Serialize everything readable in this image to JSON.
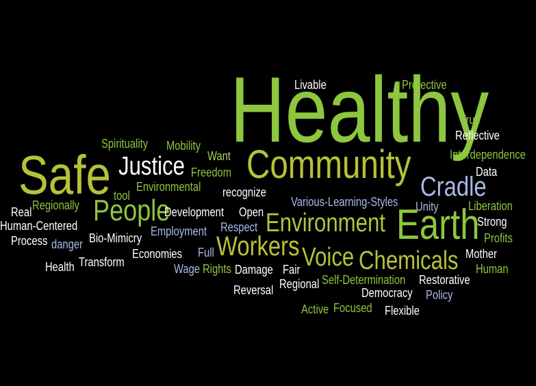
{
  "colors": {
    "background": "#000000",
    "bright_green": "#8dc63f",
    "olive_green": "#b5c23a",
    "light_green": "#9fd35a",
    "white": "#ffffff",
    "light_blue": "#a9b9e6"
  },
  "words": [
    {
      "text": "Healthy",
      "color": "bright_green"
    },
    {
      "text": "Safe",
      "color": "olive_green"
    },
    {
      "text": "Community",
      "color": "olive_green"
    },
    {
      "text": "Earth",
      "color": "bright_green"
    },
    {
      "text": "Justice",
      "color": "white"
    },
    {
      "text": "Cradle",
      "color": "light_blue"
    },
    {
      "text": "People",
      "color": "bright_green"
    },
    {
      "text": "Environment",
      "color": "olive_green"
    },
    {
      "text": "Workers",
      "color": "olive_green"
    },
    {
      "text": "Voice",
      "color": "olive_green"
    },
    {
      "text": "Chemicals",
      "color": "olive_green"
    },
    {
      "text": "Livable",
      "color": "white"
    },
    {
      "text": "Protective",
      "color": "bright_green"
    },
    {
      "text": "True",
      "color": "bright_green"
    },
    {
      "text": "Reflective",
      "color": "white"
    },
    {
      "text": "Interdependence",
      "color": "bright_green"
    },
    {
      "text": "Data",
      "color": "white"
    },
    {
      "text": "Spirituality",
      "color": "bright_green"
    },
    {
      "text": "Mobility",
      "color": "bright_green"
    },
    {
      "text": "Want",
      "color": "light_green"
    },
    {
      "text": "Freedom",
      "color": "bright_green"
    },
    {
      "text": "tool",
      "color": "bright_green"
    },
    {
      "text": "Environmental",
      "color": "bright_green"
    },
    {
      "text": "recognize",
      "color": "white"
    },
    {
      "text": "Various-Learning-Styles",
      "color": "light_blue"
    },
    {
      "text": "Liberation",
      "color": "bright_green"
    },
    {
      "text": "Unity",
      "color": "light_blue"
    },
    {
      "text": "Real",
      "color": "white"
    },
    {
      "text": "Regionally",
      "color": "bright_green"
    },
    {
      "text": "Human-Centered",
      "color": "white"
    },
    {
      "text": "Process",
      "color": "white"
    },
    {
      "text": "danger",
      "color": "light_blue"
    },
    {
      "text": "Development",
      "color": "white"
    },
    {
      "text": "Open",
      "color": "white"
    },
    {
      "text": "Strong",
      "color": "white"
    },
    {
      "text": "Employment",
      "color": "light_blue"
    },
    {
      "text": "Respect",
      "color": "light_blue"
    },
    {
      "text": "Bio-Mimicry",
      "color": "white"
    },
    {
      "text": "Profits",
      "color": "bright_green"
    },
    {
      "text": "Economies",
      "color": "white"
    },
    {
      "text": "Full",
      "color": "light_blue"
    },
    {
      "text": "Mother",
      "color": "white"
    },
    {
      "text": "Health",
      "color": "white"
    },
    {
      "text": "Transform",
      "color": "white"
    },
    {
      "text": "Wage",
      "color": "light_blue"
    },
    {
      "text": "Rights",
      "color": "bright_green"
    },
    {
      "text": "Damage",
      "color": "white"
    },
    {
      "text": "Fair",
      "color": "white"
    },
    {
      "text": "Human",
      "color": "bright_green"
    },
    {
      "text": "Regional",
      "color": "white"
    },
    {
      "text": "Self-Determination",
      "color": "bright_green"
    },
    {
      "text": "Restorative",
      "color": "white"
    },
    {
      "text": "Reversal",
      "color": "white"
    },
    {
      "text": "Democracy",
      "color": "white"
    },
    {
      "text": "Policy",
      "color": "light_blue"
    },
    {
      "text": "Active",
      "color": "bright_green"
    },
    {
      "text": "Focused",
      "color": "bright_green"
    },
    {
      "text": "Flexible",
      "color": "white"
    }
  ]
}
